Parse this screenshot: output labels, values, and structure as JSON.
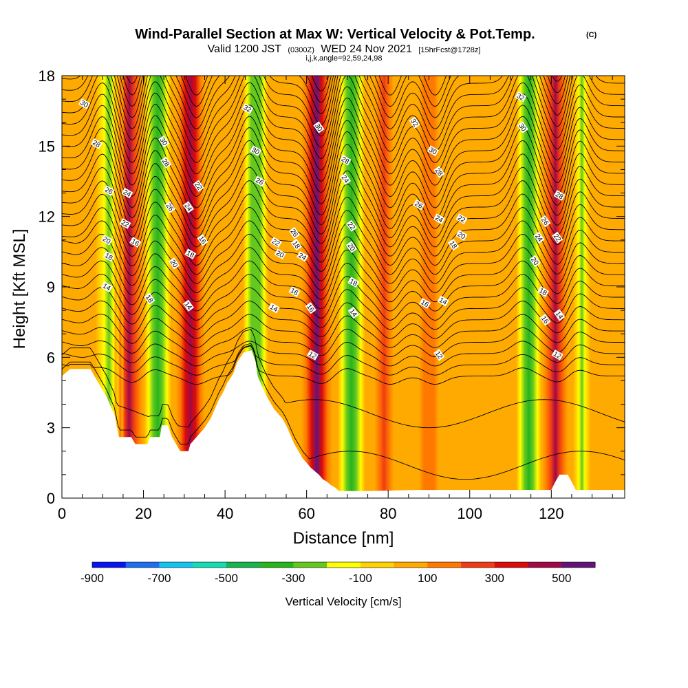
{
  "chart_data": {
    "type": "heatmap",
    "title": "Wind-Parallel Section at Max W: Vertical Velocity & Pot.Temp.",
    "title_tag": "(C)",
    "subtitle_main": "Valid 1200 JST",
    "subtitle_utc": "(0300Z)",
    "subtitle_date": "WED 24 Nov 2021",
    "subtitle_fcst": "[15hrFcst@1728z]",
    "subtitle_line2": "i,j,k,angle=92,59,24,98",
    "xlabel": "Distance [nm]",
    "ylabel": "Height [Kft MSL]",
    "xlim": [
      0,
      138
    ],
    "ylim": [
      0,
      18
    ],
    "x_ticks": [
      "0",
      "20",
      "40",
      "60",
      "80",
      "100",
      "120"
    ],
    "y_ticks": [
      "0",
      "3",
      "6",
      "9",
      "12",
      "15",
      "18"
    ],
    "colorbar": {
      "label": "Vertical Velocity [cm/s]",
      "levels": [
        -900,
        -800,
        -700,
        -600,
        -500,
        -400,
        -300,
        -200,
        -100,
        0,
        100,
        200,
        300,
        400,
        500,
        600
      ],
      "colors": [
        "#0a14f0",
        "#1e6ef0",
        "#14c3f0",
        "#14dcb4",
        "#19b450",
        "#28b41e",
        "#64c81e",
        "#ffff00",
        "#ffd200",
        "#ffaa00",
        "#ff7800",
        "#f03c14",
        "#dc0a0a",
        "#a00a46",
        "#641478"
      ],
      "tick_labels": [
        "-900",
        "-700",
        "-500",
        "-300",
        "-100",
        "100",
        "300",
        "500"
      ]
    },
    "w_columns": [
      {
        "x": 11.5,
        "w": -280,
        "width": 2.8
      },
      {
        "x": 16.5,
        "w": 420,
        "width": 2.8
      },
      {
        "x": 23.5,
        "w": -320,
        "width": 2.8
      },
      {
        "x": 31.5,
        "w": 430,
        "width": 3.0
      },
      {
        "x": 47.5,
        "w": -300,
        "width": 2.6
      },
      {
        "x": 62.5,
        "w": 520,
        "width": 3.2
      },
      {
        "x": 71.0,
        "w": -320,
        "width": 2.8
      },
      {
        "x": 79.0,
        "w": 250,
        "width": 3.0
      },
      {
        "x": 90.0,
        "w": 170,
        "width": 3.0
      },
      {
        "x": 114.5,
        "w": -310,
        "width": 2.6
      },
      {
        "x": 121.0,
        "w": 400,
        "width": 2.6
      },
      {
        "x": 127.5,
        "w": -250,
        "width": 1.8
      }
    ],
    "terrain": [
      [
        0,
        5.2
      ],
      [
        2,
        5.5
      ],
      [
        7,
        5.5
      ],
      [
        8,
        5.2
      ],
      [
        9,
        4.9
      ],
      [
        10,
        4.6
      ],
      [
        11,
        4.3
      ],
      [
        12,
        3.9
      ],
      [
        13,
        3.5
      ],
      [
        13.5,
        3.0
      ],
      [
        14,
        2.6
      ],
      [
        17,
        2.6
      ],
      [
        18,
        2.3
      ],
      [
        21,
        2.3
      ],
      [
        21.5,
        2.6
      ],
      [
        24,
        2.6
      ],
      [
        24.5,
        3.1
      ],
      [
        26,
        3.1
      ],
      [
        27,
        2.6
      ],
      [
        28,
        2.3
      ],
      [
        29,
        2.0
      ],
      [
        31,
        2.0
      ],
      [
        31.5,
        2.3
      ],
      [
        33,
        2.6
      ],
      [
        35,
        3.0
      ],
      [
        36.5,
        3.4
      ],
      [
        37.5,
        3.8
      ],
      [
        38.5,
        4.2
      ],
      [
        39.5,
        4.5
      ],
      [
        40.5,
        4.9
      ],
      [
        42,
        5.3
      ],
      [
        43,
        5.8
      ],
      [
        44.5,
        6.2
      ],
      [
        46.5,
        6.3
      ],
      [
        47.5,
        5.8
      ],
      [
        48,
        5.2
      ],
      [
        49,
        4.8
      ],
      [
        50,
        4.4
      ],
      [
        51,
        4.1
      ],
      [
        52,
        3.8
      ],
      [
        54,
        3.4
      ],
      [
        55,
        3.1
      ],
      [
        56,
        2.7
      ],
      [
        57,
        2.3
      ],
      [
        58,
        2.0
      ],
      [
        59,
        1.7
      ],
      [
        60,
        1.5
      ],
      [
        61,
        1.3
      ],
      [
        63,
        1.0
      ],
      [
        64,
        0.8
      ],
      [
        65,
        0.7
      ],
      [
        66,
        0.55
      ],
      [
        67,
        0.45
      ],
      [
        68,
        0.3
      ],
      [
        75,
        0.3
      ],
      [
        87,
        0.35
      ],
      [
        120,
        0.35
      ],
      [
        121,
        0.7
      ],
      [
        122,
        1.0
      ],
      [
        124,
        1.0
      ],
      [
        125,
        0.7
      ],
      [
        126,
        0.35
      ],
      [
        138,
        0.35
      ]
    ],
    "theta_contours": [
      {
        "value": 12,
        "labels": [
          [
            61.5,
            6.1
          ],
          [
            92.5,
            6.1
          ],
          [
            121.5,
            6.1
          ]
        ]
      },
      {
        "value": 14,
        "labels": [
          [
            11,
            9.0
          ],
          [
            31,
            8.2
          ],
          [
            52,
            8.1
          ],
          [
            71.5,
            7.9
          ],
          [
            93.5,
            8.4
          ],
          [
            122,
            7.8
          ]
        ]
      },
      {
        "value": 16,
        "labels": [
          [
            18,
            10.9
          ],
          [
            34.5,
            11.0
          ],
          [
            57,
            8.8
          ],
          [
            61,
            8.1
          ],
          [
            89,
            8.3
          ],
          [
            118.5,
            7.6
          ]
        ]
      },
      {
        "value": 18,
        "labels": [
          [
            11.5,
            10.3
          ],
          [
            21.5,
            8.5
          ],
          [
            31.5,
            10.4
          ],
          [
            57.5,
            10.8
          ],
          [
            71.5,
            9.2
          ],
          [
            96,
            10.8
          ],
          [
            118,
            8.8
          ]
        ]
      },
      {
        "value": 20,
        "labels": [
          [
            11,
            11.0
          ],
          [
            27.5,
            10.0
          ],
          [
            53.5,
            10.4
          ],
          [
            71,
            10.7
          ],
          [
            98,
            11.2
          ],
          [
            116,
            10.1
          ]
        ]
      },
      {
        "value": 22,
        "labels": [
          [
            15.5,
            11.7
          ],
          [
            33.5,
            13.3
          ],
          [
            52.5,
            10.9
          ],
          [
            71,
            11.6
          ],
          [
            98,
            11.9
          ],
          [
            121.5,
            11.1
          ]
        ]
      },
      {
        "value": 24,
        "labels": [
          [
            16,
            13.0
          ],
          [
            31,
            12.4
          ],
          [
            59,
            10.3
          ],
          [
            69.5,
            13.6
          ],
          [
            92.5,
            11.9
          ],
          [
            117,
            11.1
          ]
        ]
      },
      {
        "value": 26,
        "labels": [
          [
            11.5,
            13.1
          ],
          [
            26.5,
            12.4
          ],
          [
            48.5,
            13.5
          ],
          [
            57,
            11.3
          ],
          [
            87.5,
            12.5
          ],
          [
            118.5,
            11.8
          ]
        ]
      },
      {
        "value": 28,
        "labels": [
          [
            8.5,
            15.1
          ],
          [
            25.5,
            14.3
          ],
          [
            69.5,
            14.4
          ],
          [
            92.5,
            13.9
          ],
          [
            122,
            12.9
          ]
        ]
      },
      {
        "value": 30,
        "labels": [
          [
            5.5,
            16.8
          ],
          [
            25,
            15.2
          ],
          [
            47.5,
            14.8
          ],
          [
            63,
            15.8
          ],
          [
            91,
            14.8
          ],
          [
            113,
            15.8
          ]
        ]
      },
      {
        "value": 32,
        "labels": [
          [
            45.5,
            16.6
          ],
          [
            86.5,
            16.0
          ],
          [
            112.5,
            17.1
          ]
        ]
      }
    ]
  }
}
